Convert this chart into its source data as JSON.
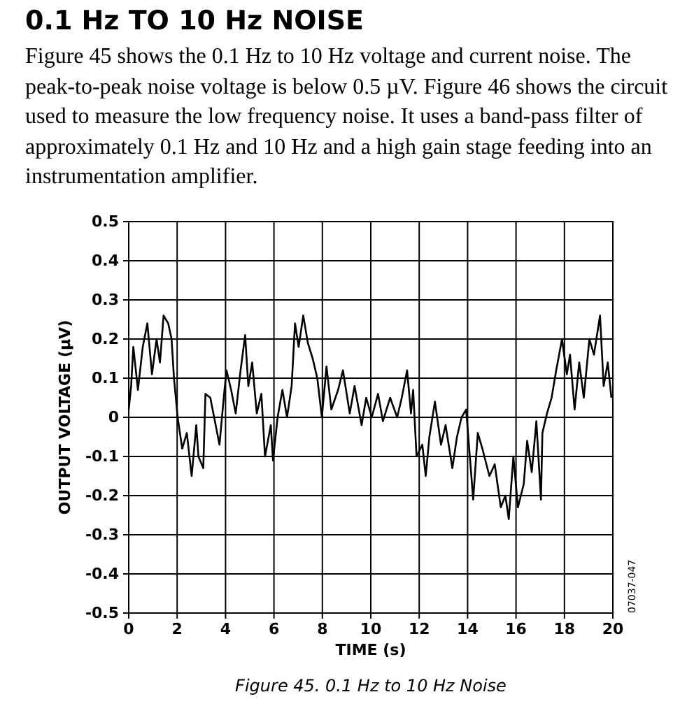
{
  "chart_data": {
    "type": "line",
    "title": "0.1 Hz TO 10 Hz NOISE",
    "subtitle": "Figure 45 shows the 0.1 Hz to 10 Hz voltage and current noise. The peak-to-peak noise voltage is below 0.5 µV. Figure 46 shows the circuit used to measure the low frequency noise. It uses a band-pass filter of approximately 0.1 Hz and 10 Hz and a high gain stage feeding into an instrumentation amplifier.",
    "xlabel": "TIME (s)",
    "ylabel": "OUTPUT VOLTAGE (µV)",
    "annotations": [
      "Figure 45. 0.1 Hz to 10 Hz Noise",
      "07037-047"
    ],
    "xlim": [
      0,
      20
    ],
    "xticks": [
      0,
      2,
      4,
      6,
      8,
      10,
      12,
      14,
      16,
      18,
      20
    ],
    "ylim": [
      -0.5,
      0.5
    ],
    "yticks": [
      -0.5,
      -0.4,
      -0.3,
      -0.2,
      -0.1,
      0,
      0.1,
      0.2,
      0.3,
      0.4,
      0.5
    ],
    "grid": true,
    "marker": "none",
    "line_style": "solid",
    "series": [
      {
        "color": "#000000",
        "x": [
          0,
          0.1,
          0.19,
          0.38,
          0.58,
          0.77,
          0.96,
          1.15,
          1.29,
          1.44,
          1.63,
          1.77,
          1.87,
          2.02,
          2.21,
          2.4,
          2.6,
          2.79,
          2.88,
          3.08,
          3.17,
          3.37,
          3.56,
          3.75,
          3.94,
          4.04,
          4.23,
          4.42,
          4.62,
          4.81,
          4.94,
          5.1,
          5.29,
          5.48,
          5.63,
          5.87,
          5.96,
          6.15,
          6.35,
          6.54,
          6.73,
          6.87,
          7.02,
          7.21,
          7.4,
          7.6,
          7.79,
          7.98,
          8.17,
          8.37,
          8.65,
          8.85,
          9.13,
          9.33,
          9.62,
          9.81,
          10.04,
          10.3,
          10.5,
          10.8,
          11.09,
          11.28,
          11.5,
          11.66,
          11.75,
          11.89,
          12.13,
          12.27,
          12.42,
          12.65,
          12.9,
          13.09,
          13.37,
          13.56,
          13.75,
          13.94,
          14.13,
          14.23,
          14.42,
          14.61,
          14.9,
          15.12,
          15.37,
          15.56,
          15.7,
          15.89,
          16.08,
          16.32,
          16.46,
          16.65,
          16.84,
          17.03,
          17.09,
          17.28,
          17.47,
          17.66,
          17.9,
          18.1,
          18.23,
          18.42,
          18.61,
          18.8,
          19.03,
          19.22,
          19.47,
          19.62,
          19.79,
          19.94
        ],
        "values": [
          0.02,
          0.08,
          0.18,
          0.07,
          0.18,
          0.24,
          0.11,
          0.2,
          0.14,
          0.26,
          0.24,
          0.2,
          0.1,
          0,
          -0.08,
          -0.04,
          -0.15,
          -0.02,
          -0.1,
          -0.13,
          0.06,
          0.05,
          -0.01,
          -0.07,
          0.06,
          0.12,
          0.07,
          0.01,
          0.12,
          0.21,
          0.08,
          0.14,
          0.01,
          0.06,
          -0.1,
          -0.02,
          -0.11,
          0,
          0.07,
          0,
          0.08,
          0.24,
          0.18,
          0.26,
          0.19,
          0.15,
          0.1,
          0,
          0.13,
          0.02,
          0.07,
          0.12,
          0.01,
          0.08,
          -0.02,
          0.05,
          0,
          0.06,
          -0.01,
          0.05,
          0,
          0.05,
          0.12,
          0.01,
          0.07,
          -0.1,
          -0.07,
          -0.15,
          -0.05,
          0.04,
          -0.07,
          -0.02,
          -0.13,
          -0.05,
          0,
          0.02,
          -0.13,
          -0.21,
          -0.04,
          -0.08,
          -0.15,
          -0.12,
          -0.23,
          -0.2,
          -0.26,
          -0.1,
          -0.23,
          -0.17,
          -0.06,
          -0.14,
          -0.01,
          -0.21,
          -0.04,
          0.01,
          0.05,
          0.12,
          0.2,
          0.11,
          0.16,
          0.02,
          0.14,
          0.05,
          0.2,
          0.16,
          0.26,
          0.08,
          0.14,
          0.05
        ]
      }
    ]
  }
}
